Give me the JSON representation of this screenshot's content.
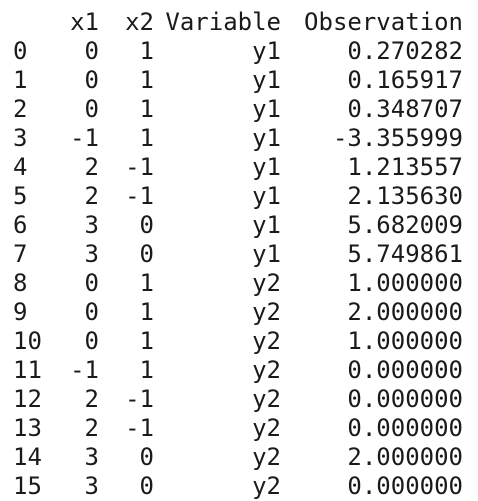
{
  "dataframe": {
    "index_header": "",
    "columns": [
      "x1",
      "x2",
      "Variable",
      "Observation"
    ],
    "rows": [
      {
        "index": "0",
        "x1": "0",
        "x2": "1",
        "variable": "y1",
        "observation": "0.270282"
      },
      {
        "index": "1",
        "x1": "0",
        "x2": "1",
        "variable": "y1",
        "observation": "0.165917"
      },
      {
        "index": "2",
        "x1": "0",
        "x2": "1",
        "variable": "y1",
        "observation": "0.348707"
      },
      {
        "index": "3",
        "x1": "-1",
        "x2": "1",
        "variable": "y1",
        "observation": "-3.355999"
      },
      {
        "index": "4",
        "x1": "2",
        "x2": "-1",
        "variable": "y1",
        "observation": "1.213557"
      },
      {
        "index": "5",
        "x1": "2",
        "x2": "-1",
        "variable": "y1",
        "observation": "2.135630"
      },
      {
        "index": "6",
        "x1": "3",
        "x2": "0",
        "variable": "y1",
        "observation": "5.682009"
      },
      {
        "index": "7",
        "x1": "3",
        "x2": "0",
        "variable": "y1",
        "observation": "5.749861"
      },
      {
        "index": "8",
        "x1": "0",
        "x2": "1",
        "variable": "y2",
        "observation": "1.000000"
      },
      {
        "index": "9",
        "x1": "0",
        "x2": "1",
        "variable": "y2",
        "observation": "2.000000"
      },
      {
        "index": "10",
        "x1": "0",
        "x2": "1",
        "variable": "y2",
        "observation": "1.000000"
      },
      {
        "index": "11",
        "x1": "-1",
        "x2": "1",
        "variable": "y2",
        "observation": "0.000000"
      },
      {
        "index": "12",
        "x1": "2",
        "x2": "-1",
        "variable": "y2",
        "observation": "0.000000"
      },
      {
        "index": "13",
        "x1": "2",
        "x2": "-1",
        "variable": "y2",
        "observation": "0.000000"
      },
      {
        "index": "14",
        "x1": "3",
        "x2": "0",
        "variable": "y2",
        "observation": "2.000000"
      },
      {
        "index": "15",
        "x1": "3",
        "x2": "0",
        "variable": "y2",
        "observation": "0.000000"
      }
    ]
  },
  "colors": {
    "background": "#ffffff",
    "text": "#1a1a1a"
  }
}
